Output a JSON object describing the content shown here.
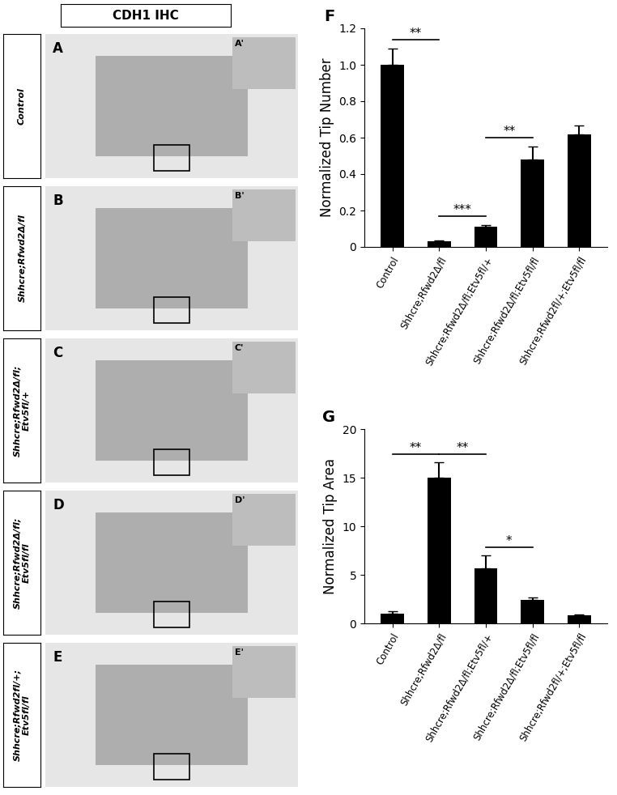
{
  "chart_data": [
    {
      "type": "bar",
      "panel": "F",
      "y_label": "Normalized Tip Number",
      "categories": [
        "Control",
        "Shhcre;Rfwd2Δ/fl",
        "Shhcre;Rfwd2Δ/fl;Etv5fl/+",
        "Shhcre;Rfwd2Δ/fl;Etv5fl/fl",
        "Shhcre;Rfwd2fl/+;Etv5fl/fl"
      ],
      "values": [
        1.0,
        0.03,
        0.11,
        0.48,
        0.62
      ],
      "errors": [
        0.09,
        0.005,
        0.01,
        0.07,
        0.045
      ],
      "color": "#000000",
      "ylim": [
        0,
        1.2
      ],
      "yticks": [
        0,
        0.2,
        0.4,
        0.6,
        0.8,
        1.0,
        1.2
      ],
      "significance": [
        {
          "from": 0,
          "to": 1,
          "label": "**"
        },
        {
          "from": 1,
          "to": 2,
          "label": "***"
        },
        {
          "from": 2,
          "to": 3,
          "label": "**"
        }
      ]
    },
    {
      "type": "bar",
      "panel": "G",
      "y_label": "Normalized Tip Area",
      "categories": [
        "Control",
        "Shhcre;Rfwd2Δ/fl",
        "Shhcre;Rfwd2Δ/fl;Etv5fl/+",
        "Shhcre;Rfwd2Δ/fl;Etv5fl/fl",
        "Shhcre;Rfwd2fl/+;Etv5fl/fl"
      ],
      "values": [
        1.0,
        15.0,
        5.7,
        2.4,
        0.85
      ],
      "errors": [
        0.25,
        1.6,
        1.3,
        0.25,
        0.1
      ],
      "color": "#000000",
      "ylim": [
        0,
        20
      ],
      "yticks": [
        0,
        5,
        10,
        15,
        20
      ],
      "significance": [
        {
          "from": 0,
          "to": 1,
          "label": "**"
        },
        {
          "from": 1,
          "to": 2,
          "label": "**"
        },
        {
          "from": 2,
          "to": 3,
          "label": "*"
        }
      ]
    }
  ],
  "image_panels": {
    "header": "CDH1 IHC",
    "rows": [
      {
        "label": "Control",
        "panel": "A",
        "inset": "A'"
      },
      {
        "label": "Shhcre;Rfwd2Δ/fl",
        "panel": "B",
        "inset": "B'"
      },
      {
        "label": "Shhcre;Rfwd2Δ/fl;\nEtv5fl/+",
        "panel": "C",
        "inset": "C'"
      },
      {
        "label": "Shhcre;Rfwd2Δ/fl;\nEtv5fl/fl",
        "panel": "D",
        "inset": "D'"
      },
      {
        "label": "Shhcre;Rfwd2fl/+;\nEtv5fl/fl",
        "panel": "E",
        "inset": "E'"
      }
    ]
  }
}
